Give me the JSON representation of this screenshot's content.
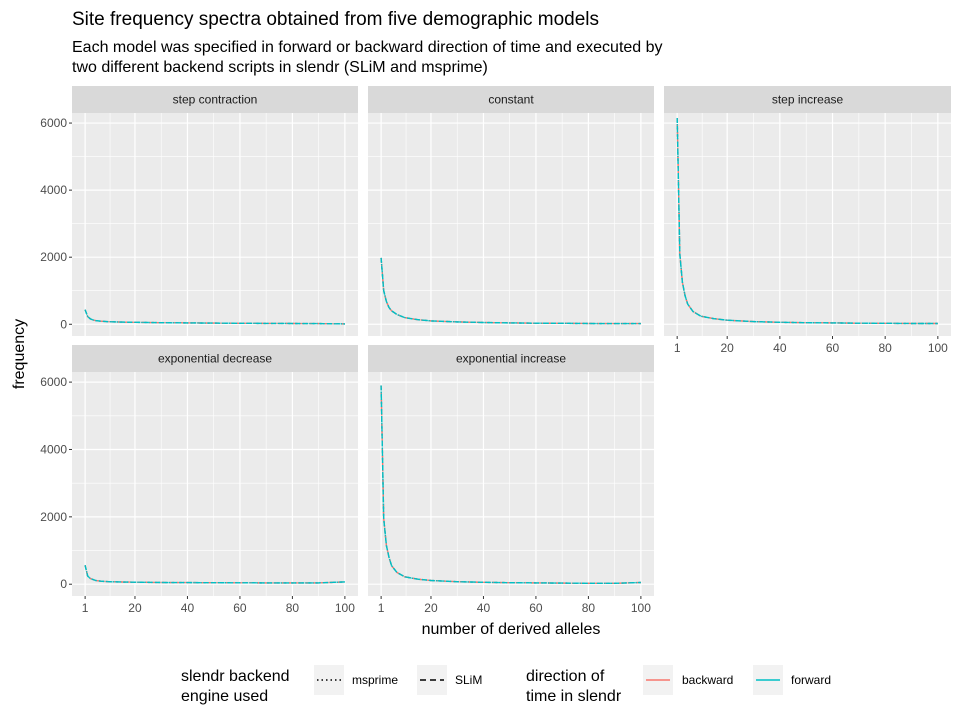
{
  "title": "Site frequency spectra obtained from five demographic models",
  "subtitle_lines": [
    "Each model was specified in forward or backward direction of time and executed by",
    "two different backend scripts in slendr (SLiM and msprime)"
  ],
  "colors": {
    "backward": "#F8766D",
    "forward": "#00BFC4",
    "panel_bg": "#EBEBEB",
    "strip_bg": "#D9D9D9",
    "grid": "#FFFFFF"
  },
  "chart_data": {
    "type": "line",
    "xlabel": "number of derived alleles",
    "ylabel": "frequency",
    "xlim": [
      1,
      100
    ],
    "ylim": [
      0,
      6300
    ],
    "x_ticks": [
      1,
      20,
      40,
      60,
      80,
      100
    ],
    "y_ticks": [
      0,
      2000,
      4000,
      6000
    ],
    "facets": [
      {
        "name": "step contraction",
        "points": [
          [
            1,
            430
          ],
          [
            2,
            230
          ],
          [
            3,
            160
          ],
          [
            4,
            130
          ],
          [
            5,
            110
          ],
          [
            7,
            90
          ],
          [
            10,
            75
          ],
          [
            15,
            65
          ],
          [
            20,
            58
          ],
          [
            30,
            48
          ],
          [
            40,
            40
          ],
          [
            50,
            35
          ],
          [
            60,
            30
          ],
          [
            70,
            26
          ],
          [
            80,
            22
          ],
          [
            90,
            20
          ],
          [
            100,
            12
          ]
        ]
      },
      {
        "name": "constant",
        "points": [
          [
            1,
            1980
          ],
          [
            2,
            1000
          ],
          [
            3,
            680
          ],
          [
            4,
            500
          ],
          [
            5,
            400
          ],
          [
            7,
            290
          ],
          [
            10,
            200
          ],
          [
            15,
            135
          ],
          [
            20,
            100
          ],
          [
            30,
            70
          ],
          [
            40,
            52
          ],
          [
            50,
            40
          ],
          [
            60,
            33
          ],
          [
            70,
            28
          ],
          [
            80,
            24
          ],
          [
            90,
            21
          ],
          [
            100,
            20
          ]
        ]
      },
      {
        "name": "step increase",
        "points": [
          [
            1,
            6150
          ],
          [
            2,
            2100
          ],
          [
            3,
            1250
          ],
          [
            4,
            850
          ],
          [
            5,
            600
          ],
          [
            7,
            380
          ],
          [
            10,
            240
          ],
          [
            15,
            165
          ],
          [
            20,
            120
          ],
          [
            30,
            80
          ],
          [
            40,
            60
          ],
          [
            50,
            48
          ],
          [
            60,
            40
          ],
          [
            70,
            33
          ],
          [
            80,
            28
          ],
          [
            90,
            24
          ],
          [
            100,
            22
          ]
        ]
      },
      {
        "name": "exponential decrease",
        "points": [
          [
            1,
            560
          ],
          [
            2,
            240
          ],
          [
            3,
            170
          ],
          [
            4,
            140
          ],
          [
            5,
            110
          ],
          [
            7,
            90
          ],
          [
            10,
            75
          ],
          [
            15,
            65
          ],
          [
            20,
            60
          ],
          [
            30,
            52
          ],
          [
            40,
            48
          ],
          [
            50,
            45
          ],
          [
            60,
            42
          ],
          [
            70,
            40
          ],
          [
            80,
            38
          ],
          [
            90,
            40
          ],
          [
            100,
            70
          ]
        ]
      },
      {
        "name": "exponential increase",
        "points": [
          [
            1,
            5900
          ],
          [
            2,
            1950
          ],
          [
            3,
            1150
          ],
          [
            4,
            800
          ],
          [
            5,
            550
          ],
          [
            7,
            350
          ],
          [
            10,
            220
          ],
          [
            15,
            150
          ],
          [
            20,
            110
          ],
          [
            30,
            75
          ],
          [
            40,
            58
          ],
          [
            50,
            45
          ],
          [
            60,
            38
          ],
          [
            70,
            32
          ],
          [
            80,
            28
          ],
          [
            90,
            26
          ],
          [
            100,
            50
          ]
        ]
      }
    ],
    "legends": [
      {
        "title_lines": [
          "slendr backend",
          "engine used"
        ],
        "entries": [
          {
            "label": "msprime",
            "linetype": "dotted"
          },
          {
            "label": "SLiM",
            "linetype": "dashed"
          }
        ]
      },
      {
        "title_lines": [
          "direction of",
          "time in slendr"
        ],
        "entries": [
          {
            "label": "backward",
            "color": "#F8766D"
          },
          {
            "label": "forward",
            "color": "#00BFC4"
          }
        ]
      }
    ],
    "legend_position": "bottom"
  }
}
